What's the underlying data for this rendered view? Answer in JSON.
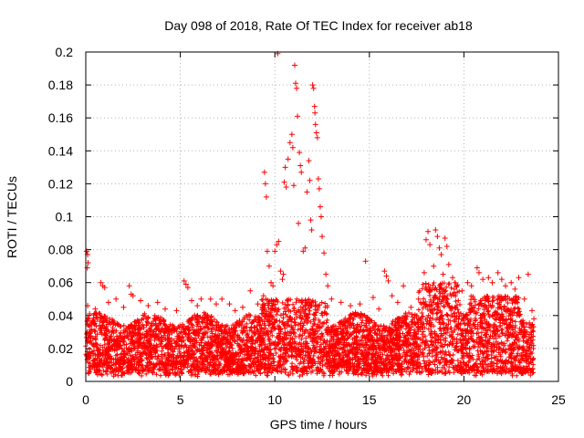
{
  "chart_data": {
    "type": "scatter",
    "title": "Day 098 of 2018, Rate Of TEC Index for receiver ab18",
    "xlabel": "GPS time / hours",
    "ylabel": "ROTI / TECUs",
    "xlim": [
      0,
      25
    ],
    "ylim": [
      0,
      0.2
    ],
    "xticks": [
      0,
      5,
      10,
      15,
      20,
      25
    ],
    "yticks": [
      0,
      0.02,
      0.04,
      0.06,
      0.08,
      0.1,
      0.12,
      0.14,
      0.16,
      0.18,
      0.2
    ],
    "xtick_labels": [
      "0",
      "5",
      "10",
      "15",
      "20",
      "25"
    ],
    "ytick_labels": [
      "0",
      "0.02",
      "0.04",
      "0.06",
      "0.08",
      "0.1",
      "0.12",
      "0.14",
      "0.16",
      "0.18",
      "0.2"
    ],
    "grid": true,
    "marker": "+",
    "color": "#ff0000",
    "series": [
      {
        "name": "ROTI",
        "points": [
          [
            0.05,
            0.079
          ],
          [
            0.1,
            0.077
          ],
          [
            0.12,
            0.072
          ],
          [
            0.08,
            0.069
          ],
          [
            0.1,
            0.046
          ],
          [
            0.2,
            0.041
          ],
          [
            0.5,
            0.044
          ],
          [
            0.8,
            0.06
          ],
          [
            0.9,
            0.058
          ],
          [
            1.0,
            0.057
          ],
          [
            1.2,
            0.048
          ],
          [
            1.6,
            0.05
          ],
          [
            2.0,
            0.045
          ],
          [
            2.3,
            0.058
          ],
          [
            2.4,
            0.053
          ],
          [
            2.5,
            0.052
          ],
          [
            2.9,
            0.049
          ],
          [
            3.3,
            0.046
          ],
          [
            3.8,
            0.048
          ],
          [
            4.2,
            0.044
          ],
          [
            4.8,
            0.043
          ],
          [
            5.2,
            0.061
          ],
          [
            5.3,
            0.059
          ],
          [
            5.4,
            0.057
          ],
          [
            5.6,
            0.049
          ],
          [
            5.9,
            0.046
          ],
          [
            6.1,
            0.05
          ],
          [
            6.6,
            0.05
          ],
          [
            6.9,
            0.047
          ],
          [
            7.2,
            0.05
          ],
          [
            7.6,
            0.047
          ],
          [
            7.9,
            0.043
          ],
          [
            8.3,
            0.045
          ],
          [
            8.7,
            0.055
          ],
          [
            9.1,
            0.047
          ],
          [
            9.4,
            0.052
          ],
          [
            9.45,
            0.127
          ],
          [
            9.5,
            0.12
          ],
          [
            9.55,
            0.112
          ],
          [
            9.6,
            0.079
          ],
          [
            9.7,
            0.07
          ],
          [
            9.8,
            0.06
          ],
          [
            9.9,
            0.058
          ],
          [
            10.0,
            0.079
          ],
          [
            10.1,
            0.083
          ],
          [
            10.15,
            0.199
          ],
          [
            10.2,
            0.085
          ],
          [
            10.3,
            0.067
          ],
          [
            10.4,
            0.062
          ],
          [
            10.45,
            0.065
          ],
          [
            10.5,
            0.121
          ],
          [
            10.55,
            0.13
          ],
          [
            10.6,
            0.118
          ],
          [
            10.7,
            0.135
          ],
          [
            10.8,
            0.145
          ],
          [
            10.9,
            0.15
          ],
          [
            10.95,
            0.142
          ],
          [
            11.0,
            0.119
          ],
          [
            11.05,
            0.192
          ],
          [
            11.1,
            0.181
          ],
          [
            11.15,
            0.178
          ],
          [
            11.2,
            0.161
          ],
          [
            11.25,
            0.096
          ],
          [
            11.3,
            0.139
          ],
          [
            11.35,
            0.131
          ],
          [
            11.4,
            0.127
          ],
          [
            11.5,
            0.079
          ],
          [
            11.6,
            0.081
          ],
          [
            11.7,
            0.115
          ],
          [
            11.8,
            0.134
          ],
          [
            11.85,
            0.122
          ],
          [
            11.9,
            0.098
          ],
          [
            11.95,
            0.092
          ],
          [
            12.0,
            0.18
          ],
          [
            12.05,
            0.178
          ],
          [
            12.1,
            0.167
          ],
          [
            12.12,
            0.163
          ],
          [
            12.15,
            0.156
          ],
          [
            12.2,
            0.151
          ],
          [
            12.25,
            0.148
          ],
          [
            12.3,
            0.123
          ],
          [
            12.35,
            0.117
          ],
          [
            12.4,
            0.106
          ],
          [
            12.45,
            0.1
          ],
          [
            12.5,
            0.088
          ],
          [
            12.6,
            0.078
          ],
          [
            12.7,
            0.065
          ],
          [
            12.8,
            0.058
          ],
          [
            13.0,
            0.05
          ],
          [
            13.5,
            0.048
          ],
          [
            14.0,
            0.046
          ],
          [
            14.5,
            0.047
          ],
          [
            14.8,
            0.073
          ],
          [
            15.2,
            0.051
          ],
          [
            15.5,
            0.044
          ],
          [
            15.8,
            0.067
          ],
          [
            15.9,
            0.064
          ],
          [
            16.0,
            0.061
          ],
          [
            16.2,
            0.052
          ],
          [
            16.5,
            0.048
          ],
          [
            16.8,
            0.058
          ],
          [
            17.2,
            0.045
          ],
          [
            17.6,
            0.05
          ],
          [
            17.9,
            0.066
          ],
          [
            18.0,
            0.086
          ],
          [
            18.1,
            0.091
          ],
          [
            18.2,
            0.083
          ],
          [
            18.4,
            0.07
          ],
          [
            18.5,
            0.092
          ],
          [
            18.6,
            0.088
          ],
          [
            18.7,
            0.081
          ],
          [
            18.8,
            0.077
          ],
          [
            18.9,
            0.065
          ],
          [
            19.0,
            0.087
          ],
          [
            19.1,
            0.082
          ],
          [
            19.2,
            0.071
          ],
          [
            19.4,
            0.063
          ],
          [
            19.6,
            0.058
          ],
          [
            19.9,
            0.055
          ],
          [
            20.2,
            0.06
          ],
          [
            20.4,
            0.058
          ],
          [
            20.7,
            0.069
          ],
          [
            20.8,
            0.066
          ],
          [
            21.0,
            0.062
          ],
          [
            21.3,
            0.063
          ],
          [
            21.5,
            0.06
          ],
          [
            21.8,
            0.066
          ],
          [
            22.0,
            0.062
          ],
          [
            22.2,
            0.058
          ],
          [
            22.5,
            0.06
          ],
          [
            22.7,
            0.056
          ],
          [
            22.9,
            0.063
          ],
          [
            23.2,
            0.05
          ],
          [
            23.4,
            0.065
          ],
          [
            23.6,
            0.043
          ],
          [
            23.7,
            0.038
          ]
        ]
      }
    ]
  }
}
